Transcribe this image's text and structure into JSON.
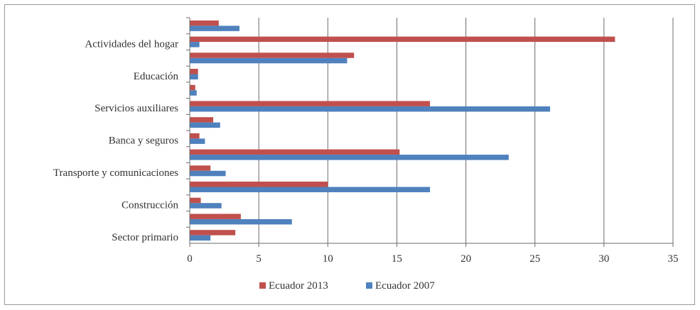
{
  "chart_data": {
    "type": "bar",
    "orientation": "horizontal",
    "title": "",
    "xlabel": "",
    "ylabel": "",
    "xlim": [
      0,
      35
    ],
    "xticks": [
      0,
      5,
      10,
      15,
      20,
      25,
      30,
      35
    ],
    "grid": true,
    "legend_position": "bottom",
    "categories": [
      "Sector primario",
      "",
      "Construcción",
      "",
      "Transporte y comunicaciones",
      "",
      "Banca y seguros",
      "",
      "Servicios auxiliares",
      "",
      "Educación",
      "",
      "Actividades del hogar",
      ""
    ],
    "series": [
      {
        "name": "Ecuador 2013",
        "color": "#c0504d",
        "values": [
          3.3,
          3.7,
          0.8,
          10.0,
          1.5,
          15.2,
          0.7,
          1.7,
          17.4,
          0.4,
          0.6,
          11.9,
          30.8,
          2.1
        ]
      },
      {
        "name": "Ecuador 2007",
        "color": "#4f81bd",
        "values": [
          1.5,
          7.4,
          2.3,
          17.4,
          2.6,
          23.1,
          1.1,
          2.2,
          26.1,
          0.5,
          0.6,
          11.4,
          0.7,
          3.6
        ]
      }
    ]
  }
}
